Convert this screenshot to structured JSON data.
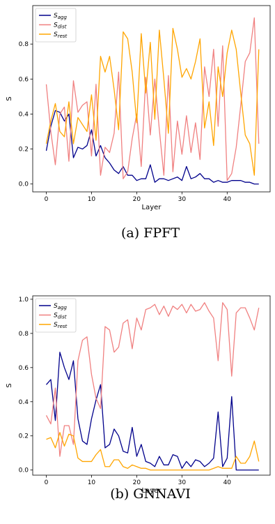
{
  "captions": [
    "(a) FPFT",
    "(b) GNNAVI"
  ],
  "chart_data": [
    {
      "type": "line",
      "xlabel": "Layer",
      "ylabel": "S",
      "xlim": [
        -3,
        49.5
      ],
      "ylim": [
        -0.045,
        1.02
      ],
      "xticks": [
        0,
        10,
        20,
        30,
        40
      ],
      "yticks": [
        0.0,
        0.2,
        0.4,
        0.6,
        0.8
      ],
      "ytick_labels": [
        "0.0",
        "0.2",
        "0.4",
        "0.6",
        "0.8"
      ],
      "legend_position": "upper-left",
      "x": [
        0,
        1,
        2,
        3,
        4,
        5,
        6,
        7,
        8,
        9,
        10,
        11,
        12,
        13,
        14,
        15,
        16,
        17,
        18,
        19,
        20,
        21,
        22,
        23,
        24,
        25,
        26,
        27,
        28,
        29,
        30,
        31,
        32,
        33,
        34,
        35,
        36,
        37,
        38,
        39,
        40,
        41,
        42,
        43,
        44,
        45,
        46,
        47
      ],
      "series": [
        {
          "name": "S_agg",
          "label_base": "S",
          "label_sub": "agg",
          "color": "#00008b",
          "values": [
            0.19,
            0.33,
            0.42,
            0.41,
            0.36,
            0.4,
            0.15,
            0.21,
            0.2,
            0.22,
            0.31,
            0.16,
            0.22,
            0.15,
            0.12,
            0.08,
            0.06,
            0.1,
            0.05,
            0.05,
            0.02,
            0.03,
            0.03,
            0.11,
            0.01,
            0.03,
            0.03,
            0.02,
            0.03,
            0.04,
            0.02,
            0.1,
            0.03,
            0.04,
            0.06,
            0.03,
            0.03,
            0.01,
            0.02,
            0.01,
            0.01,
            0.02,
            0.02,
            0.02,
            0.01,
            0.01,
            0.0,
            0.0
          ]
        },
        {
          "name": "S_dist",
          "label_base": "S",
          "label_sub": "dist",
          "color": "#f08080",
          "values": [
            0.57,
            0.3,
            0.11,
            0.4,
            0.44,
            0.13,
            0.59,
            0.41,
            0.45,
            0.47,
            0.16,
            0.57,
            0.05,
            0.21,
            0.18,
            0.29,
            0.64,
            0.03,
            0.07,
            0.26,
            0.4,
            0.1,
            0.61,
            0.28,
            0.6,
            0.31,
            0.05,
            0.62,
            0.07,
            0.36,
            0.17,
            0.39,
            0.18,
            0.35,
            0.14,
            0.67,
            0.5,
            0.77,
            0.33,
            0.79,
            0.02,
            0.06,
            0.21,
            0.45,
            0.7,
            0.75,
            0.95,
            0.23
          ]
        },
        {
          "name": "S_rest",
          "label_base": "S",
          "label_sub": "rest",
          "color": "#ffa500",
          "values": [
            0.23,
            0.36,
            0.46,
            0.3,
            0.27,
            0.47,
            0.23,
            0.38,
            0.34,
            0.3,
            0.51,
            0.25,
            0.73,
            0.64,
            0.73,
            0.54,
            0.31,
            0.87,
            0.83,
            0.64,
            0.35,
            0.86,
            0.52,
            0.81,
            0.37,
            0.88,
            0.6,
            0.29,
            0.89,
            0.77,
            0.61,
            0.66,
            0.6,
            0.7,
            0.83,
            0.32,
            0.47,
            0.22,
            0.67,
            0.5,
            0.75,
            0.88,
            0.77,
            0.52,
            0.28,
            0.23,
            0.05,
            0.77
          ]
        }
      ]
    },
    {
      "type": "line",
      "xlabel": "Layer",
      "ylabel": "S",
      "xlim": [
        -3,
        49.5
      ],
      "ylim": [
        -0.03,
        1.02
      ],
      "xticks": [
        0,
        10,
        20,
        30,
        40
      ],
      "yticks": [
        0.0,
        0.2,
        0.4,
        0.6,
        0.8,
        1.0
      ],
      "ytick_labels": [
        "0.0",
        "0.2",
        "0.4",
        "0.6",
        "0.8",
        "1.0"
      ],
      "legend_position": "upper-left",
      "x": [
        0,
        1,
        2,
        3,
        4,
        5,
        6,
        7,
        8,
        9,
        10,
        11,
        12,
        13,
        14,
        15,
        16,
        17,
        18,
        19,
        20,
        21,
        22,
        23,
        24,
        25,
        26,
        27,
        28,
        29,
        30,
        31,
        32,
        33,
        34,
        35,
        36,
        37,
        38,
        39,
        40,
        41,
        42,
        43,
        44,
        45,
        46,
        47
      ],
      "series": [
        {
          "name": "S_agg",
          "label_base": "S",
          "label_sub": "agg",
          "color": "#00008b",
          "values": [
            0.5,
            0.53,
            0.29,
            0.69,
            0.6,
            0.53,
            0.64,
            0.3,
            0.17,
            0.15,
            0.3,
            0.41,
            0.5,
            0.13,
            0.15,
            0.24,
            0.2,
            0.11,
            0.1,
            0.25,
            0.08,
            0.15,
            0.05,
            0.04,
            0.02,
            0.08,
            0.03,
            0.03,
            0.09,
            0.08,
            0.01,
            0.05,
            0.02,
            0.06,
            0.05,
            0.02,
            0.04,
            0.07,
            0.34,
            0.02,
            0.07,
            0.43,
            0.0,
            0.0,
            0.0,
            0.0,
            0.0,
            0.0
          ]
        },
        {
          "name": "S_dist",
          "label_base": "S",
          "label_sub": "dist",
          "color": "#f08080",
          "values": [
            0.32,
            0.27,
            0.48,
            0.08,
            0.26,
            0.26,
            0.15,
            0.64,
            0.76,
            0.78,
            0.56,
            0.42,
            0.36,
            0.84,
            0.82,
            0.69,
            0.72,
            0.86,
            0.88,
            0.71,
            0.89,
            0.82,
            0.94,
            0.95,
            0.97,
            0.91,
            0.96,
            0.9,
            0.96,
            0.94,
            0.97,
            0.92,
            0.97,
            0.93,
            0.94,
            0.98,
            0.93,
            0.89,
            0.64,
            0.98,
            0.94,
            0.55,
            0.92,
            0.95,
            0.95,
            0.89,
            0.82,
            0.95
          ]
        },
        {
          "name": "S_rest",
          "label_base": "S",
          "label_sub": "rest",
          "color": "#ffa500",
          "values": [
            0.18,
            0.19,
            0.13,
            0.22,
            0.14,
            0.21,
            0.2,
            0.07,
            0.05,
            0.05,
            0.05,
            0.09,
            0.12,
            0.02,
            0.02,
            0.06,
            0.06,
            0.02,
            0.01,
            0.03,
            0.02,
            0.01,
            0.01,
            0.0,
            0.0,
            0.0,
            0.0,
            0.0,
            0.0,
            0.0,
            0.0,
            0.0,
            0.0,
            0.0,
            0.0,
            0.0,
            0.0,
            0.01,
            0.02,
            0.01,
            0.01,
            0.01,
            0.08,
            0.04,
            0.04,
            0.08,
            0.17,
            0.05
          ]
        }
      ]
    }
  ]
}
